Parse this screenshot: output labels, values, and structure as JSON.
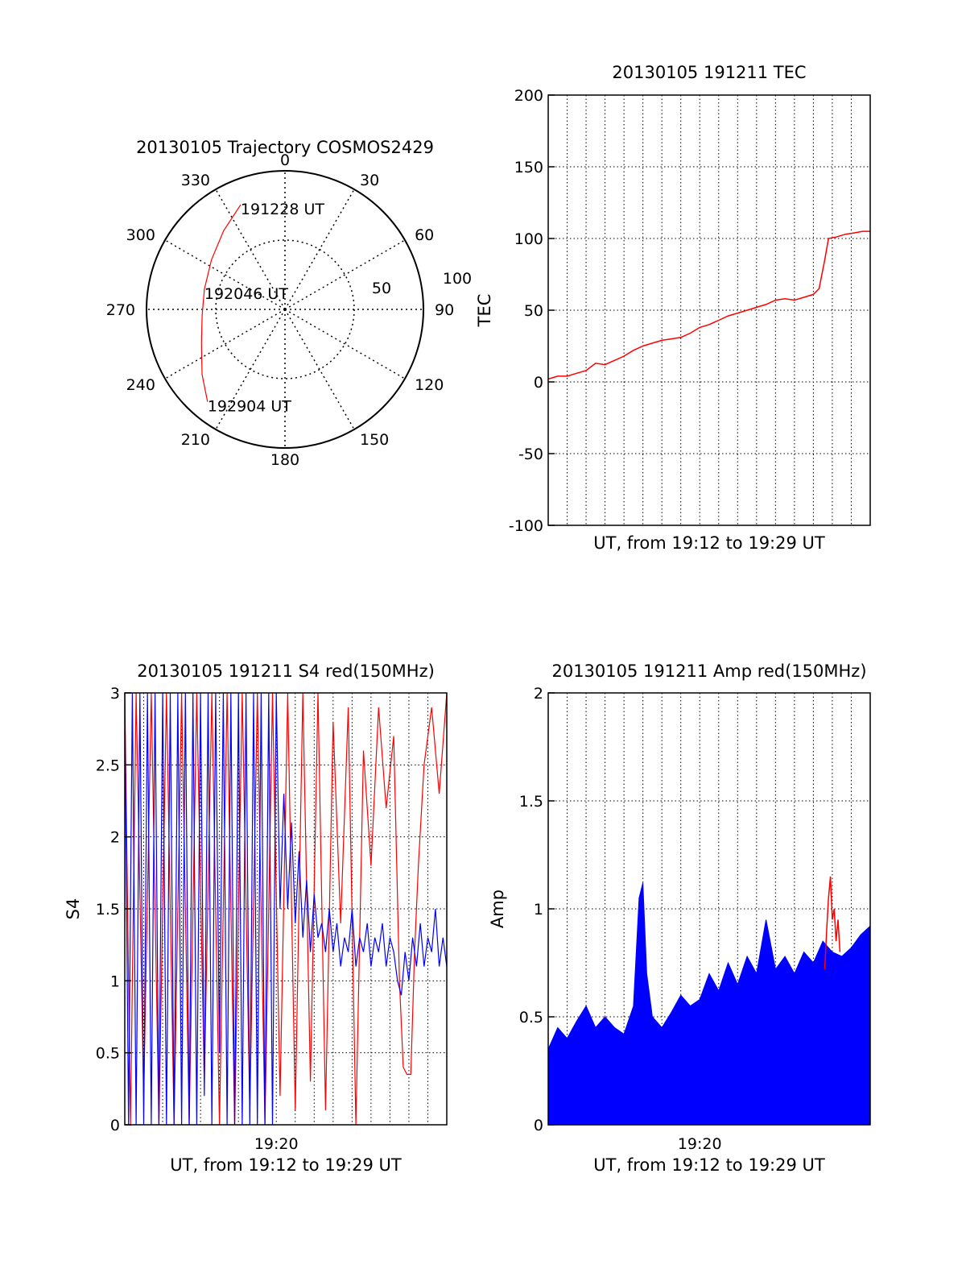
{
  "colors": {
    "axis": "#000000",
    "red": "#ff0000",
    "blue": "#0000ff",
    "grid": "#000000",
    "background": "#ffffff"
  },
  "chart_data": [
    {
      "id": "trajectory",
      "type": "polar",
      "title": "20130105 Trajectory COSMOS2429",
      "angle_labels": [
        "0",
        "30",
        "60",
        "90",
        "120",
        "150",
        "180",
        "210",
        "240",
        "270",
        "300",
        "330"
      ],
      "radial_ticks": [
        {
          "label": "50",
          "value": 50
        },
        {
          "label": "100",
          "value": 100
        }
      ],
      "r_max": 100,
      "grid": true,
      "series": [
        {
          "color": "red",
          "points": [
            {
              "az": 337,
              "r": 82
            },
            {
              "az": 322,
              "r": 72
            },
            {
              "az": 304,
              "r": 64
            },
            {
              "az": 284,
              "r": 60
            },
            {
              "az": 266,
              "r": 60
            },
            {
              "az": 248,
              "r": 65
            },
            {
              "az": 232,
              "r": 76
            },
            {
              "az": 220,
              "r": 87
            }
          ]
        }
      ],
      "annotations": [
        {
          "text": "191228 UT",
          "az": 337,
          "r": 82
        },
        {
          "text": "192046 UT",
          "az": 284,
          "r": 60
        },
        {
          "text": "192904 UT",
          "az": 220,
          "r": 87
        }
      ]
    },
    {
      "id": "tec",
      "type": "line",
      "title": "20130105 191211 TEC",
      "xlabel": "UT, from 19:12 to 19:29 UT",
      "ylabel": "TEC",
      "xlim": [
        0,
        17
      ],
      "ylim": [
        -100,
        200
      ],
      "yticks": [
        "-100",
        "-50",
        "0",
        "50",
        "100",
        "150",
        "200"
      ],
      "grid": true,
      "series": [
        {
          "color": "red",
          "points": [
            [
              0.0,
              2
            ],
            [
              0.5,
              4
            ],
            [
              1.0,
              4
            ],
            [
              1.5,
              6
            ],
            [
              2.0,
              8
            ],
            [
              2.5,
              13
            ],
            [
              3.0,
              12
            ],
            [
              3.5,
              15
            ],
            [
              4.0,
              18
            ],
            [
              4.5,
              22
            ],
            [
              5.0,
              25
            ],
            [
              5.5,
              27
            ],
            [
              6.0,
              29
            ],
            [
              6.5,
              30
            ],
            [
              7.0,
              31
            ],
            [
              7.5,
              34
            ],
            [
              8.0,
              38
            ],
            [
              8.5,
              40
            ],
            [
              9.0,
              43
            ],
            [
              9.5,
              46
            ],
            [
              10.0,
              48
            ],
            [
              10.5,
              50
            ],
            [
              11.0,
              52
            ],
            [
              11.5,
              54
            ],
            [
              12.0,
              57
            ],
            [
              12.5,
              58
            ],
            [
              13.0,
              57
            ],
            [
              13.5,
              59
            ],
            [
              14.0,
              61
            ],
            [
              14.3,
              65
            ],
            [
              14.6,
              85
            ],
            [
              14.8,
              100
            ],
            [
              15.2,
              101
            ],
            [
              15.7,
              103
            ],
            [
              16.2,
              104
            ],
            [
              16.6,
              105
            ],
            [
              17.0,
              105
            ]
          ]
        }
      ]
    },
    {
      "id": "s4",
      "type": "line",
      "title": "20130105 191211 S4 red(150MHz)",
      "xlabel": "UT, from 19:12 to 19:29 UT",
      "ylabel": "S4",
      "xticks": [
        {
          "label": "19:20",
          "value": 8
        }
      ],
      "xlim": [
        0,
        17
      ],
      "ylim": [
        0,
        3
      ],
      "yticks": [
        "0",
        "0.5",
        "1",
        "1.5",
        "2",
        "2.5",
        "3"
      ],
      "grid": true,
      "series": [
        {
          "name": "",
          "color": "red",
          "points": [
            [
              0.0,
              3.0
            ],
            [
              0.3,
              0.0
            ],
            [
              0.6,
              3.0
            ],
            [
              1.0,
              0.2
            ],
            [
              1.4,
              3.0
            ],
            [
              1.8,
              0.0
            ],
            [
              2.2,
              3.0
            ],
            [
              2.6,
              0.0
            ],
            [
              3.0,
              3.0
            ],
            [
              3.4,
              0.0
            ],
            [
              3.8,
              3.0
            ],
            [
              4.2,
              0.3
            ],
            [
              4.6,
              3.0
            ],
            [
              5.0,
              0.0
            ],
            [
              5.4,
              3.0
            ],
            [
              5.8,
              0.0
            ],
            [
              6.2,
              3.0
            ],
            [
              6.6,
              0.1
            ],
            [
              7.0,
              3.0
            ],
            [
              7.4,
              0.0
            ],
            [
              7.8,
              3.0
            ],
            [
              8.2,
              0.2
            ],
            [
              8.6,
              3.0
            ],
            [
              9.0,
              0.1
            ],
            [
              9.4,
              3.0
            ],
            [
              9.8,
              0.3
            ],
            [
              10.2,
              3.0
            ],
            [
              10.6,
              0.1
            ],
            [
              11.0,
              2.8
            ],
            [
              11.4,
              1.4
            ],
            [
              11.8,
              2.9
            ],
            [
              12.2,
              0.0
            ],
            [
              12.6,
              2.6
            ],
            [
              13.0,
              1.8
            ],
            [
              13.4,
              2.9
            ],
            [
              13.8,
              2.2
            ],
            [
              14.2,
              2.7
            ],
            [
              14.5,
              1.0
            ],
            [
              14.7,
              0.4
            ],
            [
              14.9,
              0.35
            ],
            [
              15.1,
              0.35
            ],
            [
              15.3,
              1.2
            ],
            [
              15.5,
              1.8
            ],
            [
              15.8,
              2.5
            ],
            [
              16.2,
              2.9
            ],
            [
              16.6,
              2.3
            ],
            [
              17.0,
              3.0
            ]
          ]
        },
        {
          "name": "",
          "color": "blue",
          "points": [
            [
              0.0,
              3.0
            ],
            [
              0.2,
              0.0
            ],
            [
              0.4,
              3.0
            ],
            [
              0.6,
              0.0
            ],
            [
              0.8,
              3.0
            ],
            [
              1.0,
              0.0
            ],
            [
              1.2,
              3.0
            ],
            [
              1.4,
              0.0
            ],
            [
              1.6,
              3.0
            ],
            [
              1.8,
              0.0
            ],
            [
              2.0,
              3.0
            ],
            [
              2.2,
              0.0
            ],
            [
              2.4,
              3.0
            ],
            [
              2.6,
              0.0
            ],
            [
              2.8,
              3.0
            ],
            [
              3.0,
              0.0
            ],
            [
              3.2,
              3.0
            ],
            [
              3.4,
              0.0
            ],
            [
              3.6,
              3.0
            ],
            [
              3.8,
              0.0
            ],
            [
              4.0,
              3.0
            ],
            [
              4.2,
              0.2
            ],
            [
              4.4,
              3.0
            ],
            [
              4.6,
              0.0
            ],
            [
              4.8,
              3.0
            ],
            [
              5.0,
              0.5
            ],
            [
              5.2,
              3.0
            ],
            [
              5.4,
              0.0
            ],
            [
              5.6,
              3.0
            ],
            [
              5.8,
              0.0
            ],
            [
              6.0,
              3.0
            ],
            [
              6.2,
              0.0
            ],
            [
              6.4,
              3.0
            ],
            [
              6.6,
              0.0
            ],
            [
              6.8,
              3.0
            ],
            [
              7.0,
              0.0
            ],
            [
              7.2,
              3.0
            ],
            [
              7.4,
              0.0
            ],
            [
              7.6,
              3.0
            ],
            [
              7.8,
              0.0
            ],
            [
              8.0,
              3.0
            ],
            [
              8.2,
              1.5
            ],
            [
              8.4,
              2.3
            ],
            [
              8.6,
              1.5
            ],
            [
              8.8,
              2.1
            ],
            [
              9.0,
              1.4
            ],
            [
              9.2,
              1.9
            ],
            [
              9.4,
              1.3
            ],
            [
              9.6,
              1.7
            ],
            [
              9.8,
              1.2
            ],
            [
              10.0,
              1.6
            ],
            [
              10.2,
              1.3
            ],
            [
              10.4,
              1.4
            ],
            [
              10.6,
              1.2
            ],
            [
              10.8,
              1.5
            ],
            [
              11.0,
              1.2
            ],
            [
              11.2,
              1.4
            ],
            [
              11.4,
              1.1
            ],
            [
              11.6,
              1.3
            ],
            [
              11.8,
              1.2
            ],
            [
              12.0,
              1.5
            ],
            [
              12.2,
              1.1
            ],
            [
              12.4,
              1.3
            ],
            [
              12.6,
              1.2
            ],
            [
              12.8,
              1.4
            ],
            [
              13.0,
              1.1
            ],
            [
              13.2,
              1.3
            ],
            [
              13.4,
              1.2
            ],
            [
              13.6,
              1.4
            ],
            [
              13.8,
              1.1
            ],
            [
              14.0,
              1.3
            ],
            [
              14.2,
              1.2
            ],
            [
              14.4,
              1.0
            ],
            [
              14.6,
              0.9
            ],
            [
              14.8,
              1.2
            ],
            [
              15.0,
              1.0
            ],
            [
              15.2,
              1.3
            ],
            [
              15.4,
              1.1
            ],
            [
              15.6,
              1.4
            ],
            [
              15.8,
              1.1
            ],
            [
              16.0,
              1.3
            ],
            [
              16.2,
              1.2
            ],
            [
              16.4,
              1.5
            ],
            [
              16.6,
              1.1
            ],
            [
              16.8,
              1.3
            ],
            [
              17.0,
              1.1
            ]
          ]
        }
      ]
    },
    {
      "id": "amp",
      "type": "area",
      "title": "20130105 191211 Amp red(150MHz)",
      "xlabel": "UT, from 19:12 to 19:29 UT",
      "ylabel": "Amp",
      "xticks": [
        {
          "label": "19:20",
          "value": 8
        }
      ],
      "xlim": [
        0,
        17
      ],
      "ylim": [
        0,
        2
      ],
      "yticks": [
        "0",
        "0.5",
        "1",
        "1.5",
        "2"
      ],
      "grid": true,
      "series": [
        {
          "name": "",
          "color": "blue",
          "points": [
            [
              0.0,
              0.35
            ],
            [
              0.5,
              0.45
            ],
            [
              1.0,
              0.4
            ],
            [
              1.5,
              0.48
            ],
            [
              2.0,
              0.55
            ],
            [
              2.5,
              0.45
            ],
            [
              3.0,
              0.5
            ],
            [
              3.5,
              0.45
            ],
            [
              4.0,
              0.42
            ],
            [
              4.5,
              0.55
            ],
            [
              4.8,
              1.05
            ],
            [
              5.0,
              1.12
            ],
            [
              5.2,
              0.7
            ],
            [
              5.5,
              0.5
            ],
            [
              6.0,
              0.45
            ],
            [
              6.5,
              0.52
            ],
            [
              7.0,
              0.6
            ],
            [
              7.5,
              0.55
            ],
            [
              8.0,
              0.58
            ],
            [
              8.5,
              0.7
            ],
            [
              9.0,
              0.62
            ],
            [
              9.5,
              0.75
            ],
            [
              10.0,
              0.65
            ],
            [
              10.5,
              0.78
            ],
            [
              11.0,
              0.7
            ],
            [
              11.5,
              0.95
            ],
            [
              12.0,
              0.72
            ],
            [
              12.5,
              0.78
            ],
            [
              13.0,
              0.7
            ],
            [
              13.5,
              0.8
            ],
            [
              14.0,
              0.75
            ],
            [
              14.5,
              0.85
            ],
            [
              15.0,
              0.8
            ],
            [
              15.5,
              0.78
            ],
            [
              16.0,
              0.82
            ],
            [
              16.5,
              0.88
            ],
            [
              17.0,
              0.92
            ]
          ]
        },
        {
          "name": "",
          "color": "red",
          "points": [
            [
              14.6,
              0.72
            ],
            [
              14.7,
              0.9
            ],
            [
              14.8,
              1.05
            ],
            [
              14.9,
              1.15
            ],
            [
              15.0,
              0.95
            ],
            [
              15.1,
              1.0
            ],
            [
              15.2,
              0.85
            ],
            [
              15.3,
              0.95
            ],
            [
              15.4,
              0.8
            ]
          ]
        }
      ]
    }
  ]
}
